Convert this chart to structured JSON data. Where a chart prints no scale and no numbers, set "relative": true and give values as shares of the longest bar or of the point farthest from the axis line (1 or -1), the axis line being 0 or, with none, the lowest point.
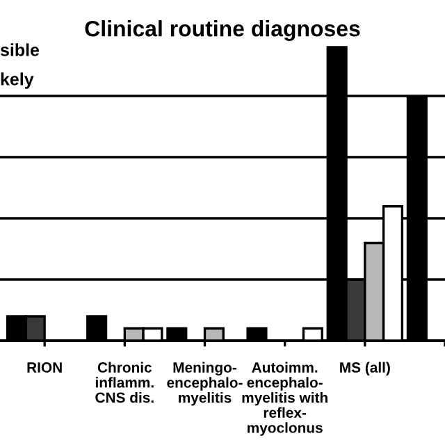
{
  "chart_data": {
    "type": "bar",
    "title": "Clinical routine diagnoses",
    "relative": true,
    "grid": "y",
    "legend": false,
    "annotations": [
      "sible",
      "kely"
    ],
    "categories": [
      "RION",
      "Chronic\ninflamm.\nCNS dis.",
      "Meningo-\nencephalo-\nmyelitis",
      "Autoimm.\nencephalo-\nmyelitis with\nreflex-\nmyoclonus",
      "MS (all)",
      null
    ],
    "series": [
      {
        "color": "#000000",
        "values": [
          0.083,
          0.083,
          0.042,
          0.042,
          1,
          0.833
        ]
      },
      {
        "color": "#3a3a3a",
        "values": [
          0.083,
          0,
          0,
          0,
          0.208,
          null
        ]
      },
      {
        "color": "#b8b8b8",
        "values": [
          0,
          0.042,
          0.042,
          0,
          0.333,
          null
        ]
      },
      {
        "color": "#ffffff",
        "values": [
          0,
          0.042,
          0,
          0.042,
          0.458,
          null
        ]
      }
    ]
  }
}
